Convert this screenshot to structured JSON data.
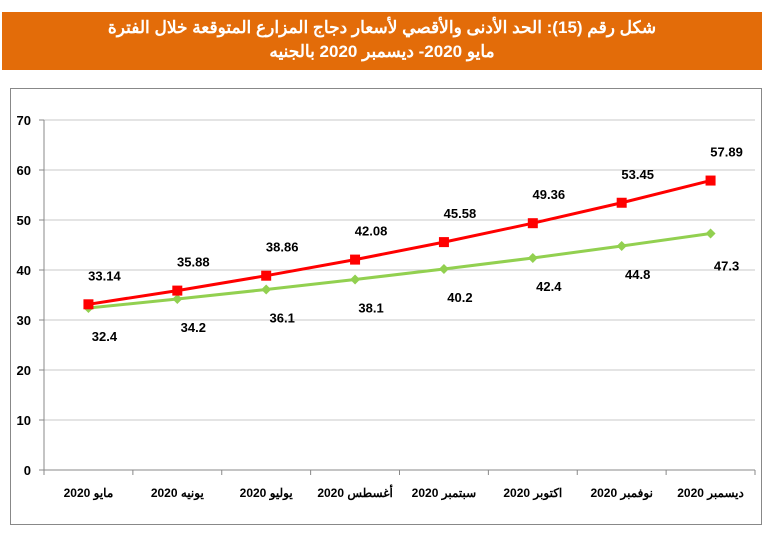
{
  "title": {
    "line1": "شكل رقم (15): الحد الأدنى والأقصي لأسعار  دجاج المزارع المتوقعة خلال الفترة",
    "line2": "مايو 2020- ديسمبر 2020 بالجنيه"
  },
  "chart_data": {
    "type": "line",
    "categories": [
      "مايو 2020",
      "يونيه 2020",
      "يوليو 2020",
      "أغسطس 2020",
      "سبتمبر 2020",
      "اكتوبر 2020",
      "نوفمبر 2020",
      "ديسمبر 2020"
    ],
    "series": [
      {
        "values": [
          33.14,
          35.88,
          38.86,
          42.08,
          45.58,
          49.36,
          53.45,
          57.89
        ],
        "color": "#ff0000",
        "marker": "square"
      },
      {
        "values": [
          32.4,
          34.2,
          36.1,
          38.1,
          40.2,
          42.4,
          44.8,
          47.3
        ],
        "color": "#92d050",
        "marker": "diamond"
      }
    ],
    "ylim": [
      0,
      70
    ],
    "yticks": [
      0,
      10,
      20,
      30,
      40,
      50,
      60,
      70
    ],
    "grid": true,
    "legend": "none"
  }
}
